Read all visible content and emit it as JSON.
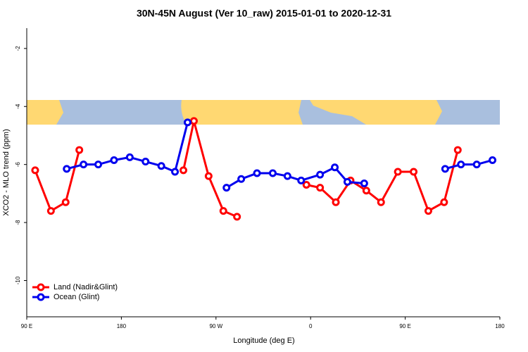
{
  "chart_data": {
    "type": "line",
    "title": "30N-45N August (Ver 10_raw)   2015-01-01 to 2020-12-31",
    "x_label": "Longitude (deg E)",
    "y_label": "XCO2 - MLO trend (ppm)",
    "xlim": [
      90,
      540
    ],
    "ylim": [
      -11.25,
      -1.3
    ],
    "xticks": [
      {
        "value": 90,
        "label": "90 E"
      },
      {
        "value": 180,
        "label": "180"
      },
      {
        "value": 270,
        "label": "90 W"
      },
      {
        "value": 360,
        "label": "0"
      },
      {
        "value": 450,
        "label": "90 E"
      },
      {
        "value": 540,
        "label": "180"
      }
    ],
    "yticks": [
      -10,
      -8,
      -6,
      -4,
      -2
    ],
    "legend": "bottom-left",
    "series": [
      {
        "name": "Land (Nadir&Glint)",
        "color": "#ff0000",
        "x": [
          98,
          113,
          127,
          140,
          null,
          239,
          249,
          263,
          277,
          290,
          null,
          356,
          369,
          384,
          398,
          413,
          427,
          443,
          458,
          472,
          487,
          500
        ],
        "values": [
          -6.2,
          -7.6,
          -7.3,
          -5.5,
          null,
          -6.2,
          -4.5,
          -6.4,
          -7.6,
          -7.8,
          null,
          -6.7,
          -6.8,
          -7.3,
          -6.55,
          -6.9,
          -7.3,
          -6.25,
          -6.25,
          -7.6,
          -7.3,
          -5.5
        ]
      },
      {
        "name": "Ocean (Glint)",
        "color": "#0000ee",
        "x": [
          128,
          144,
          158,
          173,
          188,
          203,
          218,
          231,
          243,
          null,
          280,
          294,
          309,
          324,
          338,
          351,
          369,
          383,
          395,
          411,
          null,
          488,
          503,
          518,
          533
        ],
        "values": [
          -6.15,
          -6.0,
          -6.0,
          -5.85,
          -5.75,
          -5.9,
          -6.05,
          -6.25,
          -4.55,
          null,
          -6.8,
          -6.5,
          -6.3,
          -6.3,
          -6.4,
          -6.55,
          -6.35,
          -6.1,
          -6.6,
          -6.65,
          null,
          -6.15,
          -6.0,
          -6.0,
          -5.85
        ]
      }
    ]
  }
}
